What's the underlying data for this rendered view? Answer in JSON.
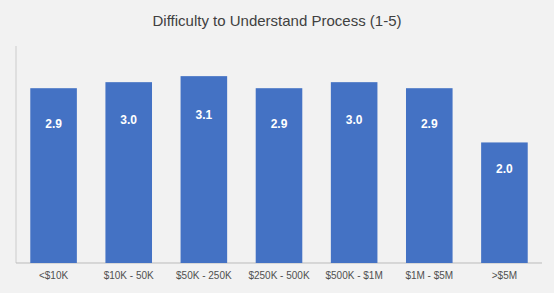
{
  "chart_data": {
    "type": "bar",
    "title": "Difficulty to Understand Process (1-5)",
    "categories": [
      "<$10K",
      "$10K - 50K",
      "$50K - 250K",
      "$250K - 500K",
      "$500K - $1M",
      "$1M - $5M",
      ">$5M"
    ],
    "values": [
      2.9,
      3.0,
      3.1,
      2.9,
      3.0,
      2.9,
      2.0
    ],
    "value_labels": [
      "2.9",
      "3.0",
      "3.1",
      "2.9",
      "3.0",
      "2.9",
      "2.0"
    ],
    "color": "#4472C4",
    "ylim": [
      0,
      3.6
    ],
    "grid": false,
    "data_labels": true,
    "tick_labels": "x"
  }
}
